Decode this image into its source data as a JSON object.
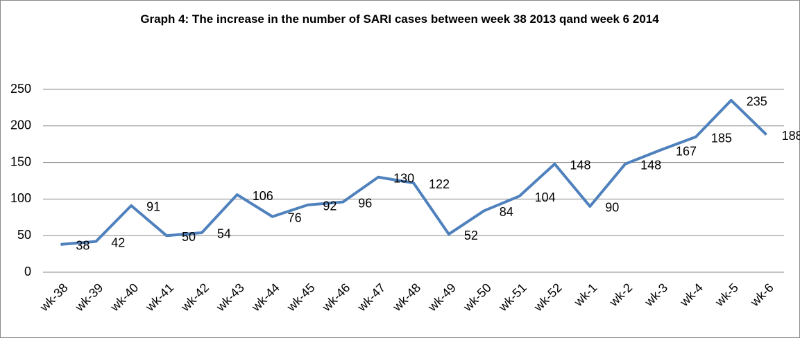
{
  "chart_data": {
    "type": "line",
    "title": "Graph 4: The increase in the number of SARI cases between week 38 2013 qand week 6 2014",
    "categories": [
      "wk-38",
      "wk-39",
      "wk-40",
      "wk-41",
      "wk-42",
      "wk-43",
      "wk-44",
      "wk-45",
      "wk-46",
      "wk-47",
      "wk-48",
      "wk-49",
      "wk-50",
      "wk-51",
      "wk-52",
      "wk-1",
      "wk-2",
      "wk-3",
      "wk-4",
      "wk-5",
      "wk-6"
    ],
    "values": [
      38,
      42,
      91,
      50,
      54,
      106,
      76,
      92,
      96,
      130,
      122,
      52,
      84,
      104,
      148,
      90,
      148,
      167,
      185,
      235,
      188
    ],
    "color": "#4f81bd",
    "ylim": [
      0,
      250
    ],
    "yticks": [
      0,
      50,
      100,
      150,
      200,
      250
    ],
    "grid": true
  }
}
